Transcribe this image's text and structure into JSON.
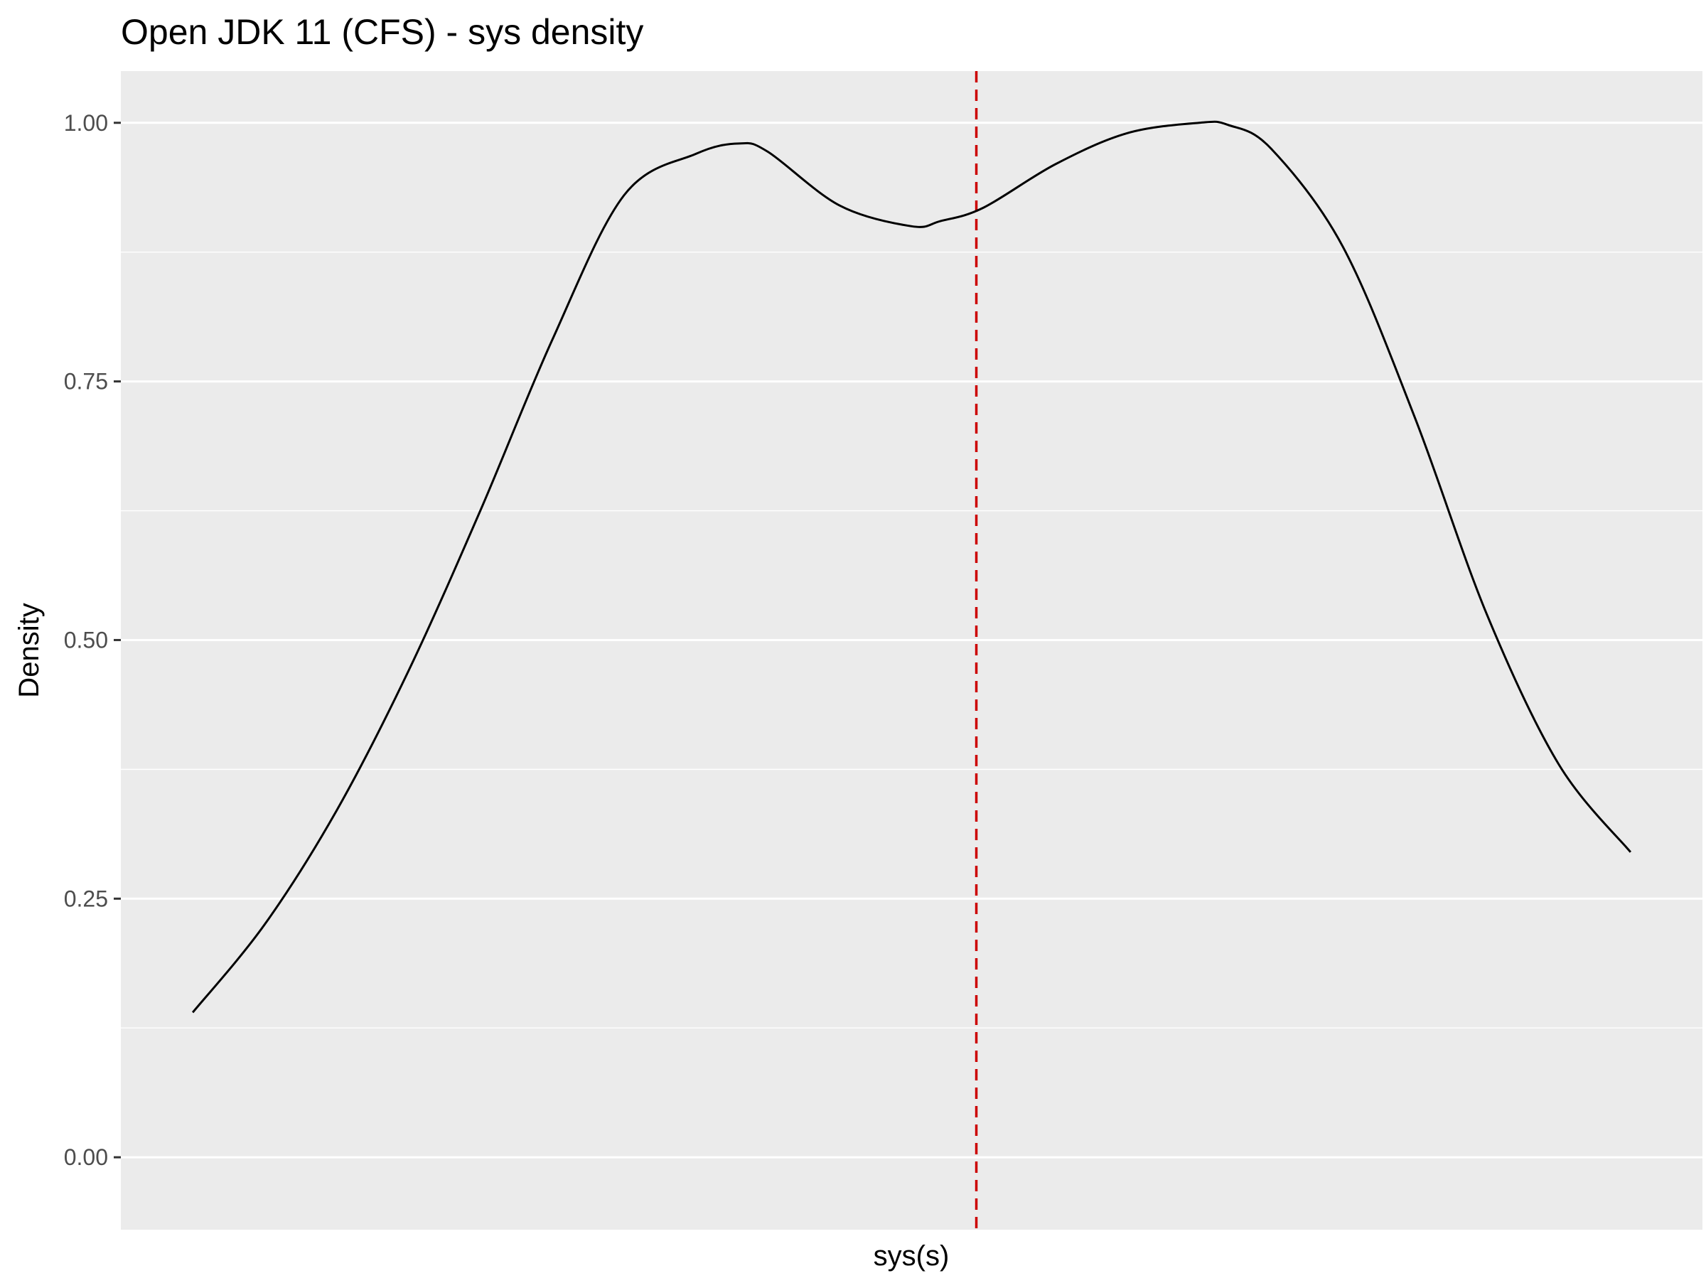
{
  "colors": {
    "panel_background": "#ebebeb",
    "grid_major": "#ffffff",
    "grid_minor": "#ffffff",
    "axis_ticks": "#333333",
    "tick_text": "#4d4d4d",
    "density_line": "#000000",
    "reference_line": "#cc0000"
  },
  "chart_data": {
    "type": "line",
    "title": "Open JDK 11 (CFS) - sys density",
    "xlabel": "sys(s)",
    "ylabel": "Density",
    "ylim": [
      -0.07,
      1.05
    ],
    "xlim": [
      -0.05,
      1.05
    ],
    "y_ticks": [
      0.0,
      0.25,
      0.5,
      0.75,
      1.0
    ],
    "y_tick_labels": [
      "0.00",
      "0.25",
      "0.50",
      "0.75",
      "1.00"
    ],
    "y_minor_ticks": [
      0.125,
      0.375,
      0.625,
      0.875
    ],
    "x_tick_labels": [],
    "grid": true,
    "series": [
      {
        "x": [
          0.0,
          0.05,
          0.1,
          0.15,
          0.2,
          0.25,
          0.3,
          0.35,
          0.38,
          0.4,
          0.45,
          0.5,
          0.52,
          0.55,
          0.6,
          0.65,
          0.7,
          0.72,
          0.75,
          0.8,
          0.85,
          0.9,
          0.95,
          1.0
        ],
        "y": [
          0.14,
          0.225,
          0.335,
          0.47,
          0.625,
          0.79,
          0.93,
          0.97,
          0.98,
          0.972,
          0.92,
          0.9,
          0.905,
          0.918,
          0.96,
          0.99,
          1.0,
          0.998,
          0.975,
          0.88,
          0.715,
          0.525,
          0.38,
          0.295
        ],
        "style": "solid"
      }
    ],
    "reference_line": {
      "orientation": "vertical",
      "x": 0.545,
      "style": "dashed"
    }
  }
}
